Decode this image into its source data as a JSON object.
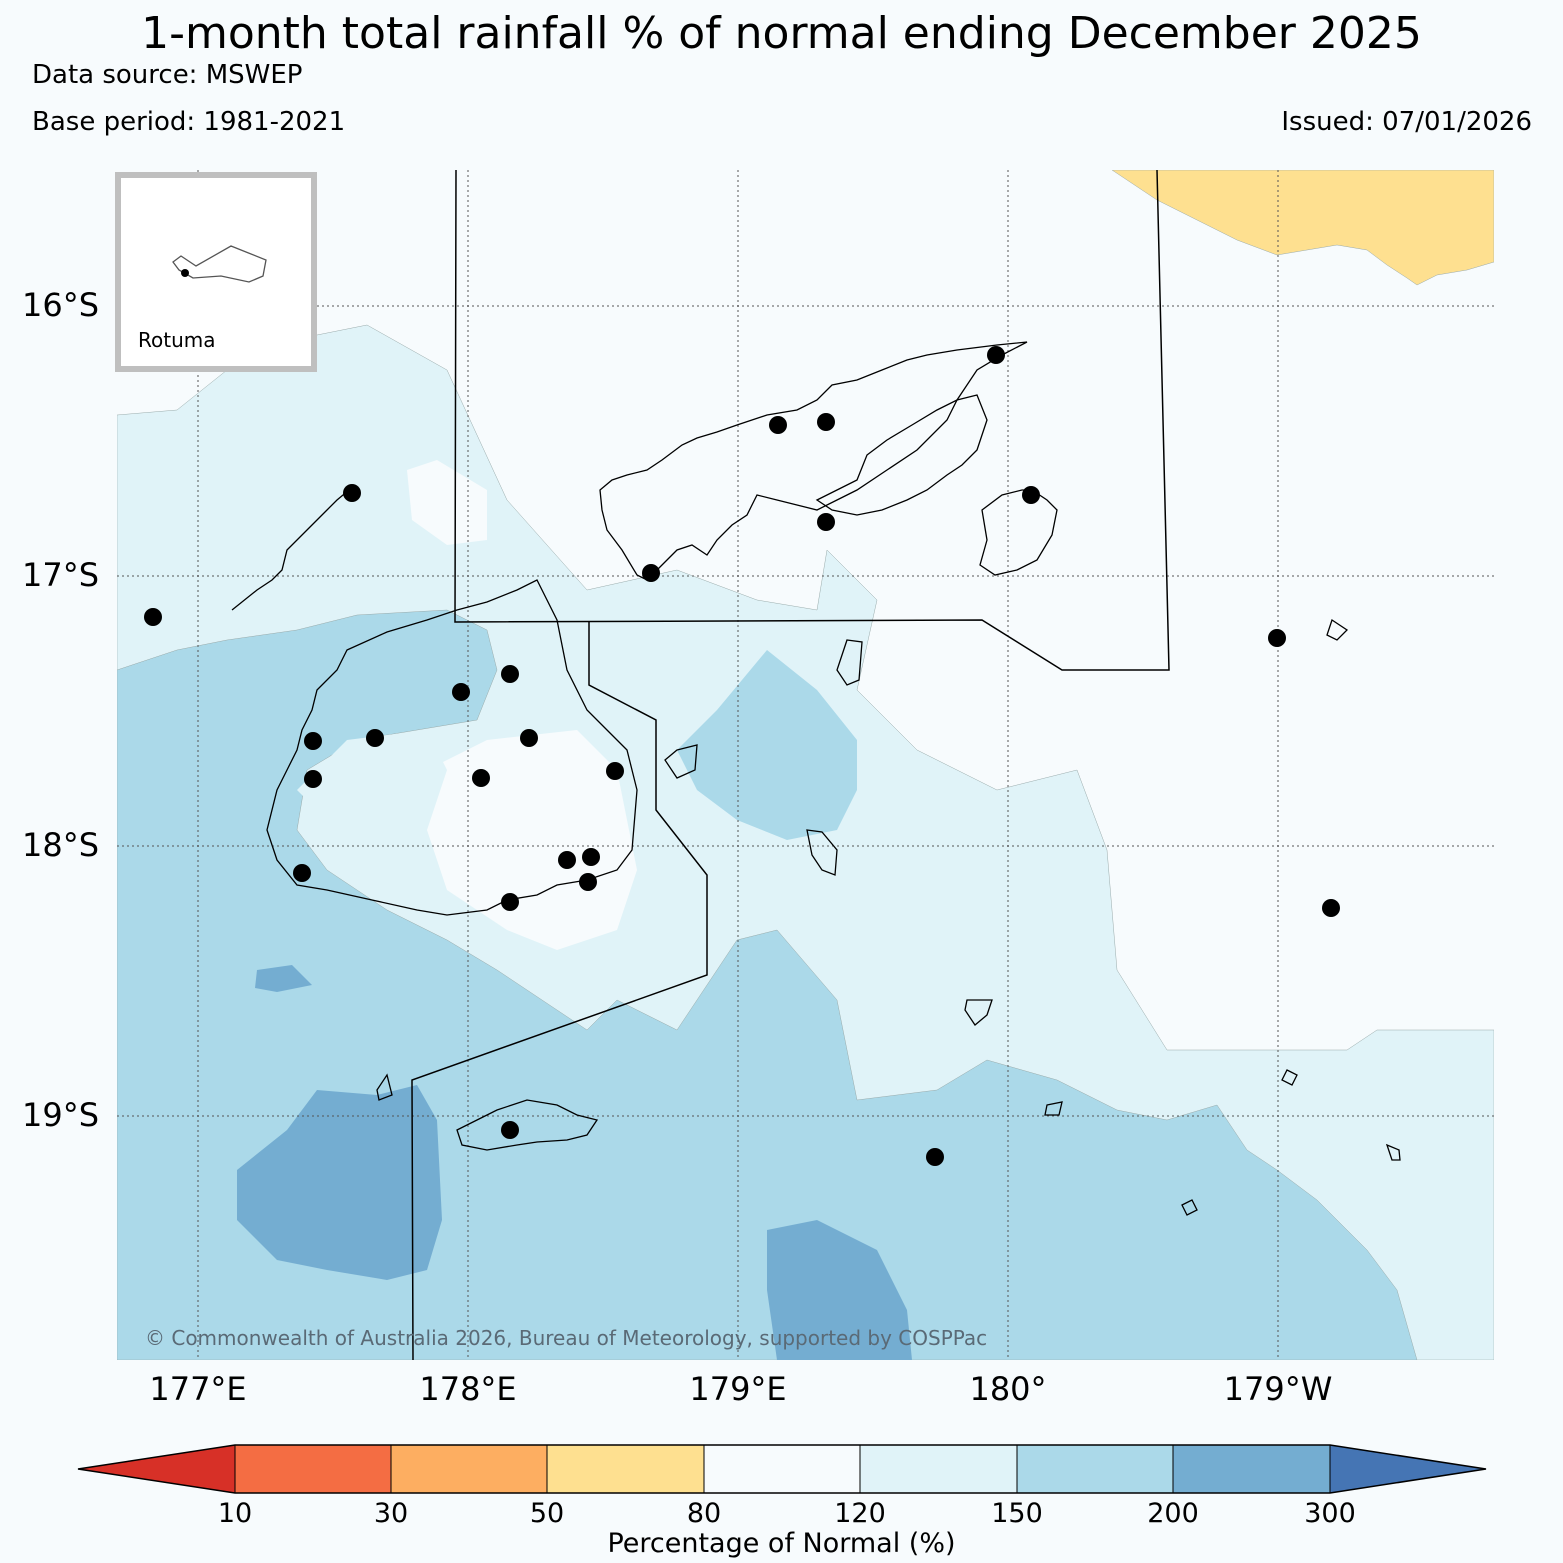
{
  "title": "1-month total rainfall % of normal ending December 2025",
  "data_source": "Data source: MSWEP",
  "base_period": "Base period: 1981-2021",
  "issued": "Issued: 07/01/2026",
  "inset_label": "Rotuma",
  "copyright": "© Commonwealth of Australia 2026, Bureau of Meteorology, supported by COSPPac",
  "lat_labels": [
    "16°S",
    "17°S",
    "18°S",
    "19°S"
  ],
  "lon_labels": [
    "177°E",
    "178°E",
    "179°E",
    "180°",
    "179°W"
  ],
  "colorbar": {
    "label": "Percentage of Normal (%)",
    "ticks": [
      "10",
      "30",
      "50",
      "80",
      "120",
      "150",
      "200",
      "300"
    ],
    "colors": {
      "lt10": "#d73027",
      "c10_30": "#f46d43",
      "c30_50": "#fdae61",
      "c50_80": "#fee090",
      "c80_120": "#f7fbfd",
      "c120_150": "#e0f3f8",
      "c150_200": "#abd9e9",
      "c200_300": "#74add1",
      "gt300": "#4575b4"
    }
  }
}
